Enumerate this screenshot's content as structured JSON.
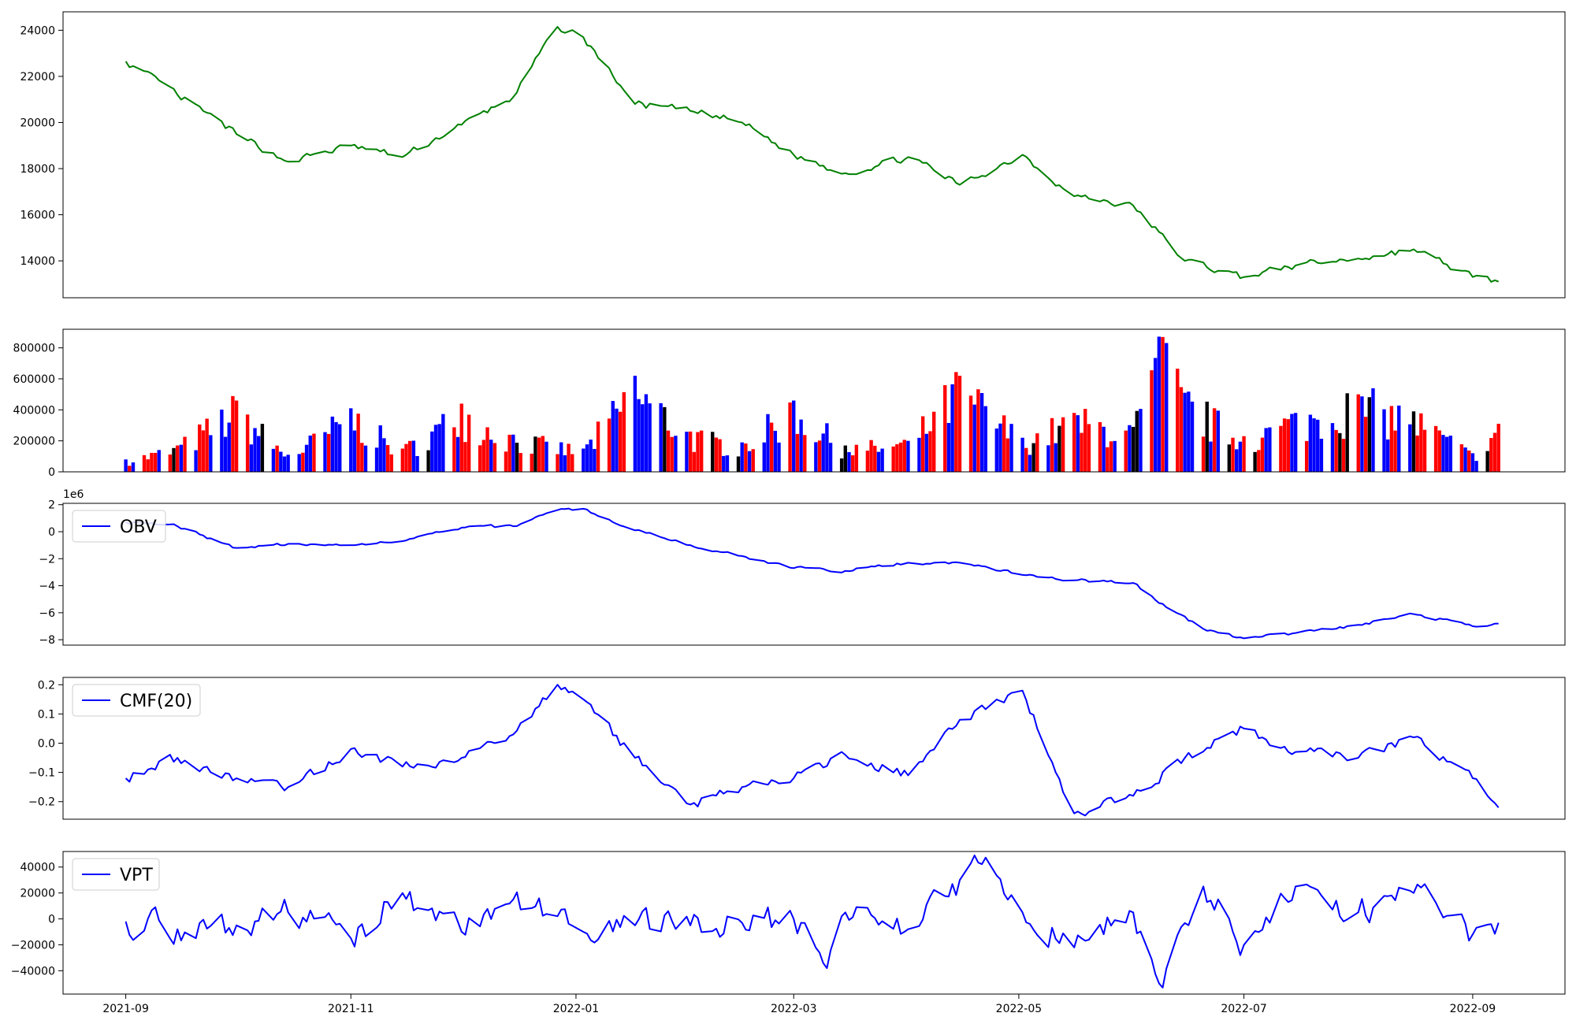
{
  "colors": {
    "price": "#008000",
    "indicator": "#0000ff",
    "volume_up": "#0000ff",
    "volume_down": "#ff0000",
    "volume_flat": "#000000"
  },
  "chart_data": [
    {
      "id": "price",
      "type": "line",
      "title": "",
      "xlabel": "",
      "ylabel": "",
      "ylim": [
        12400,
        24800
      ],
      "yticks": [
        14000,
        16000,
        18000,
        20000,
        22000,
        24000
      ],
      "ytick_labels": [
        "14000",
        "16000",
        "18000",
        "20000",
        "22000",
        "24000"
      ],
      "x": [
        "2021-09-01",
        "2021-09-15",
        "2021-10-01",
        "2021-10-15",
        "2021-11-01",
        "2021-11-15",
        "2021-12-01",
        "2021-12-15",
        "2021-12-27",
        "2022-01-03",
        "2022-01-17",
        "2022-02-01",
        "2022-02-15",
        "2022-03-01",
        "2022-03-15",
        "2022-04-01",
        "2022-04-15",
        "2022-05-02",
        "2022-05-16",
        "2022-06-01",
        "2022-06-15",
        "2022-07-01",
        "2022-07-15",
        "2022-08-01",
        "2022-08-16",
        "2022-09-01",
        "2022-09-08"
      ],
      "values": [
        22650,
        21200,
        19500,
        18300,
        19000,
        18500,
        19900,
        21100,
        24150,
        23700,
        20800,
        20500,
        20000,
        18600,
        17800,
        18500,
        17300,
        18600,
        16800,
        16400,
        14000,
        13300,
        13800,
        14100,
        14500,
        13300,
        13100
      ]
    },
    {
      "id": "volume",
      "type": "bar",
      "title": "",
      "xlabel": "",
      "ylabel": "",
      "ylim": [
        0,
        920000
      ],
      "yticks": [
        0,
        200000,
        400000,
        600000,
        800000
      ],
      "ytick_labels": [
        "0",
        "200000",
        "400000",
        "600000",
        "800000"
      ],
      "x": [
        "2021-09-01",
        "2021-09-15",
        "2021-10-01",
        "2021-10-15",
        "2021-11-01",
        "2021-11-15",
        "2021-12-01",
        "2021-12-15",
        "2022-01-03",
        "2022-01-17",
        "2022-02-01",
        "2022-02-15",
        "2022-03-01",
        "2022-03-15",
        "2022-04-01",
        "2022-04-15",
        "2022-05-02",
        "2022-05-16",
        "2022-06-01",
        "2022-06-09",
        "2022-06-15",
        "2022-07-01",
        "2022-07-15",
        "2022-08-01",
        "2022-08-16",
        "2022-09-01",
        "2022-09-08"
      ],
      "values": [
        80000,
        170000,
        460000,
        110000,
        410000,
        150000,
        440000,
        240000,
        150000,
        620000,
        260000,
        190000,
        460000,
        170000,
        200000,
        620000,
        220000,
        380000,
        290000,
        870000,
        510000,
        230000,
        380000,
        500000,
        390000,
        120000,
        310000
      ],
      "bar_colors": [
        "up",
        "down",
        "down",
        "up",
        "up",
        "down",
        "down",
        "up",
        "up",
        "up",
        "down",
        "up",
        "up",
        "flat",
        "up",
        "down",
        "up",
        "down",
        "flat",
        "down",
        "up",
        "down",
        "up",
        "down",
        "flat",
        "up",
        "down"
      ]
    },
    {
      "id": "obv",
      "type": "line",
      "title": "",
      "xlabel": "",
      "ylabel": "",
      "scale_label": "1e6",
      "ylim": [
        -8.4,
        2.1
      ],
      "yticks": [
        -8,
        -6,
        -4,
        -2,
        0,
        2
      ],
      "ytick_labels": [
        "−8",
        "−6",
        "−4",
        "−2",
        "0",
        "2"
      ],
      "series": [
        {
          "name": "OBV",
          "x": [
            "2021-09-01",
            "2021-09-15",
            "2021-10-01",
            "2021-10-15",
            "2021-11-01",
            "2021-11-15",
            "2021-12-01",
            "2021-12-15",
            "2021-12-27",
            "2022-01-03",
            "2022-01-17",
            "2022-02-01",
            "2022-02-15",
            "2022-03-01",
            "2022-03-15",
            "2022-04-01",
            "2022-04-15",
            "2022-05-02",
            "2022-05-16",
            "2022-06-01",
            "2022-06-10",
            "2022-06-20",
            "2022-07-01",
            "2022-07-15",
            "2022-08-01",
            "2022-08-16",
            "2022-09-01",
            "2022-09-08"
          ],
          "values": [
            0.7,
            0.4,
            -1.2,
            -0.9,
            -1.0,
            -0.7,
            0.3,
            0.4,
            1.6,
            1.7,
            0.1,
            -1.0,
            -1.8,
            -2.7,
            -2.9,
            -2.3,
            -2.3,
            -3.2,
            -3.6,
            -3.8,
            -5.6,
            -7.2,
            -7.9,
            -7.5,
            -6.9,
            -6.1,
            -7.0,
            -6.8
          ]
        }
      ]
    },
    {
      "id": "cmf",
      "type": "line",
      "title": "",
      "xlabel": "",
      "ylabel": "",
      "ylim": [
        -0.26,
        0.225
      ],
      "yticks": [
        -0.2,
        -0.1,
        0.0,
        0.1,
        0.2
      ],
      "ytick_labels": [
        "−0.2",
        "−0.1",
        "0.0",
        "0.1",
        "0.2"
      ],
      "series": [
        {
          "name": "CMF(20)",
          "x": [
            "2021-09-01",
            "2021-09-15",
            "2021-10-01",
            "2021-10-15",
            "2021-11-01",
            "2021-11-15",
            "2021-12-01",
            "2021-12-15",
            "2021-12-27",
            "2022-01-03",
            "2022-01-17",
            "2022-02-01",
            "2022-02-15",
            "2022-03-01",
            "2022-03-15",
            "2022-04-01",
            "2022-04-15",
            "2022-05-02",
            "2022-05-16",
            "2022-06-01",
            "2022-06-15",
            "2022-07-01",
            "2022-07-15",
            "2022-08-01",
            "2022-08-16",
            "2022-09-01",
            "2022-09-08"
          ],
          "values": [
            -0.12,
            -0.05,
            -0.12,
            -0.15,
            -0.02,
            -0.08,
            -0.05,
            0.03,
            0.2,
            0.15,
            -0.05,
            -0.21,
            -0.15,
            -0.12,
            -0.04,
            -0.11,
            0.08,
            0.18,
            -0.24,
            -0.18,
            -0.05,
            0.05,
            -0.03,
            -0.05,
            0.02,
            -0.12,
            -0.22
          ]
        }
      ]
    },
    {
      "id": "vpt",
      "type": "line",
      "title": "",
      "xlabel": "",
      "ylabel": "",
      "ylim": [
        -58000,
        52000
      ],
      "yticks": [
        -40000,
        -20000,
        0,
        20000,
        40000
      ],
      "ytick_labels": [
        "−40000",
        "−20000",
        "0",
        "20000",
        "40000"
      ],
      "series": [
        {
          "name": "VPT",
          "x": [
            "2021-09-01",
            "2021-09-15",
            "2021-10-01",
            "2021-10-15",
            "2021-11-01",
            "2021-11-15",
            "2021-12-01",
            "2021-12-15",
            "2022-01-03",
            "2022-01-17",
            "2022-02-01",
            "2022-02-15",
            "2022-03-01",
            "2022-03-10",
            "2022-03-15",
            "2022-04-01",
            "2022-04-15",
            "2022-04-19",
            "2022-05-02",
            "2022-05-16",
            "2022-06-01",
            "2022-06-09",
            "2022-06-20",
            "2022-07-01",
            "2022-07-15",
            "2022-08-01",
            "2022-08-16",
            "2022-09-01",
            "2022-09-08"
          ],
          "values": [
            -2000,
            -8000,
            -5000,
            5000,
            -15000,
            20000,
            -10000,
            15000,
            -10000,
            -5000,
            -5000,
            -3000,
            0,
            -38000,
            5000,
            -8000,
            30000,
            49000,
            5000,
            -22000,
            5000,
            -53000,
            25000,
            -20000,
            25000,
            5000,
            20000,
            -12000,
            -3000
          ]
        }
      ]
    }
  ],
  "x_axis": {
    "tick_labels": [
      "2021-09",
      "2021-11",
      "2022-01",
      "2022-03",
      "2022-05",
      "2022-07",
      "2022-09"
    ],
    "tick_dates": [
      "2021-09-01",
      "2021-11-01",
      "2022-01-01",
      "2022-03-01",
      "2022-05-01",
      "2022-07-01",
      "2022-09-01"
    ],
    "range": [
      "2021-08-15",
      "2022-09-26"
    ]
  }
}
